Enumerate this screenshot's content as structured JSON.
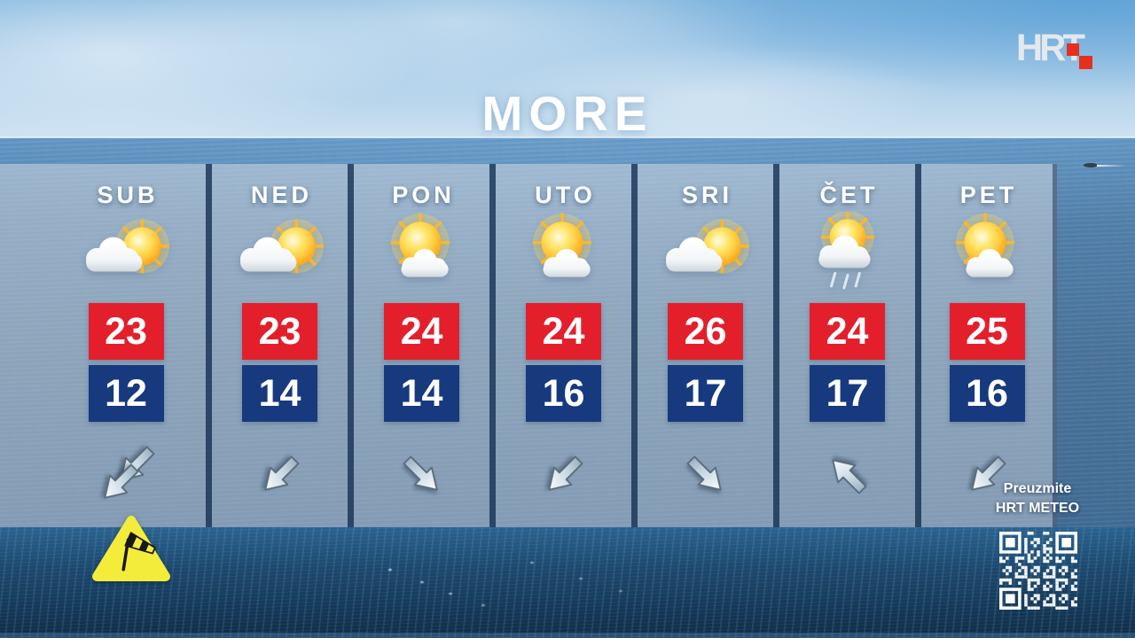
{
  "header": {
    "title": "MORE",
    "logo_text": "HRT"
  },
  "colors": {
    "temp_high_bg": "#e41f2c",
    "temp_low_bg": "#17397e",
    "warning_yellow": "#f4ec3b",
    "logo_red": "#e5301d",
    "title_white": "#ffffff",
    "qr_white": "#ffffff"
  },
  "days": [
    {
      "label": "SUB",
      "icon": "sun-cloud-right",
      "high": "23",
      "low": "12",
      "wind": {
        "points": "down-left",
        "rotation_deg": 135,
        "arrows": 2
      },
      "warning": "strong-wind"
    },
    {
      "label": "NED",
      "icon": "sun-cloud-right",
      "high": "23",
      "low": "14",
      "wind": {
        "points": "down-left",
        "rotation_deg": 135,
        "arrows": 1
      }
    },
    {
      "label": "PON",
      "icon": "sunny-small-cloud",
      "high": "24",
      "low": "14",
      "wind": {
        "points": "down-right",
        "rotation_deg": 45,
        "arrows": 1
      }
    },
    {
      "label": "UTO",
      "icon": "sunny-small-cloud",
      "high": "24",
      "low": "16",
      "wind": {
        "points": "down-left",
        "rotation_deg": 135,
        "arrows": 1
      }
    },
    {
      "label": "SRI",
      "icon": "sun-cloud-right",
      "high": "26",
      "low": "17",
      "wind": {
        "points": "down-right",
        "rotation_deg": 45,
        "arrows": 1
      }
    },
    {
      "label": "ČET",
      "icon": "sun-cloud-rain",
      "high": "24",
      "low": "17",
      "wind": {
        "points": "up-left",
        "rotation_deg": -135,
        "arrows": 1
      }
    },
    {
      "label": "PET",
      "icon": "sunny-small-cloud",
      "high": "25",
      "low": "16",
      "wind": {
        "points": "down-left",
        "rotation_deg": 135,
        "arrows": 1
      }
    }
  ],
  "warnings": [
    {
      "day": "SUB",
      "type": "wind",
      "icon": "windsock-warning-icon"
    }
  ],
  "promo": {
    "line1": "Preuzmite",
    "line2": "HRT METEO",
    "qr_icon": "qr-code"
  }
}
